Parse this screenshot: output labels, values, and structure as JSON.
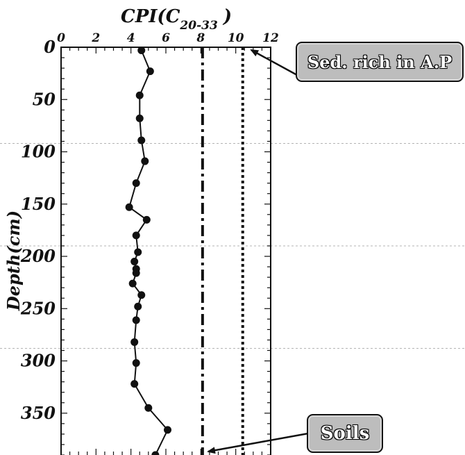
{
  "chart_data": {
    "type": "scatter",
    "x_axis_title_main": "CPI(C",
    "x_axis_title_sub": "20-33",
    "x_axis_title_close": ")",
    "y_axis_title": "Depth(cm)",
    "x_ticks": [
      "0",
      "2",
      "4",
      "6",
      "8",
      "10",
      "12"
    ],
    "y_ticks": [
      "0",
      "50",
      "100",
      "150",
      "200",
      "250",
      "300",
      "350"
    ],
    "xlim": [
      0,
      12
    ],
    "ylim": [
      0,
      390
    ],
    "x_axis_position": "top",
    "y_axis_inverted": true,
    "grid": "horizontal dashed lines at approx. 92, 190 and 288 cm",
    "series": [
      {
        "points": [
          {
            "x": 4.6,
            "y": 3
          },
          {
            "x": 5.1,
            "y": 23
          },
          {
            "x": 4.5,
            "y": 46
          },
          {
            "x": 4.5,
            "y": 68
          },
          {
            "x": 4.6,
            "y": 89
          },
          {
            "x": 4.8,
            "y": 109
          },
          {
            "x": 4.3,
            "y": 130
          },
          {
            "x": 3.9,
            "y": 153
          },
          {
            "x": 4.9,
            "y": 165
          },
          {
            "x": 4.3,
            "y": 180
          },
          {
            "x": 4.4,
            "y": 196
          },
          {
            "x": 4.2,
            "y": 205
          },
          {
            "x": 4.3,
            "y": 212
          },
          {
            "x": 4.3,
            "y": 216
          },
          {
            "x": 4.1,
            "y": 226
          },
          {
            "x": 4.6,
            "y": 237
          },
          {
            "x": 4.4,
            "y": 248
          },
          {
            "x": 4.3,
            "y": 261
          },
          {
            "x": 4.2,
            "y": 282
          },
          {
            "x": 4.3,
            "y": 302
          },
          {
            "x": 4.2,
            "y": 322
          },
          {
            "x": 5.0,
            "y": 345
          },
          {
            "x": 6.1,
            "y": 366
          },
          {
            "x": 5.4,
            "y": 390
          }
        ]
      }
    ],
    "reference_lines": [
      {
        "label": "Soils",
        "x": 8.1,
        "style": "dash-dot"
      },
      {
        "label": "Sed. rich in A.P",
        "x": 10.4,
        "style": "dotted"
      }
    ]
  }
}
